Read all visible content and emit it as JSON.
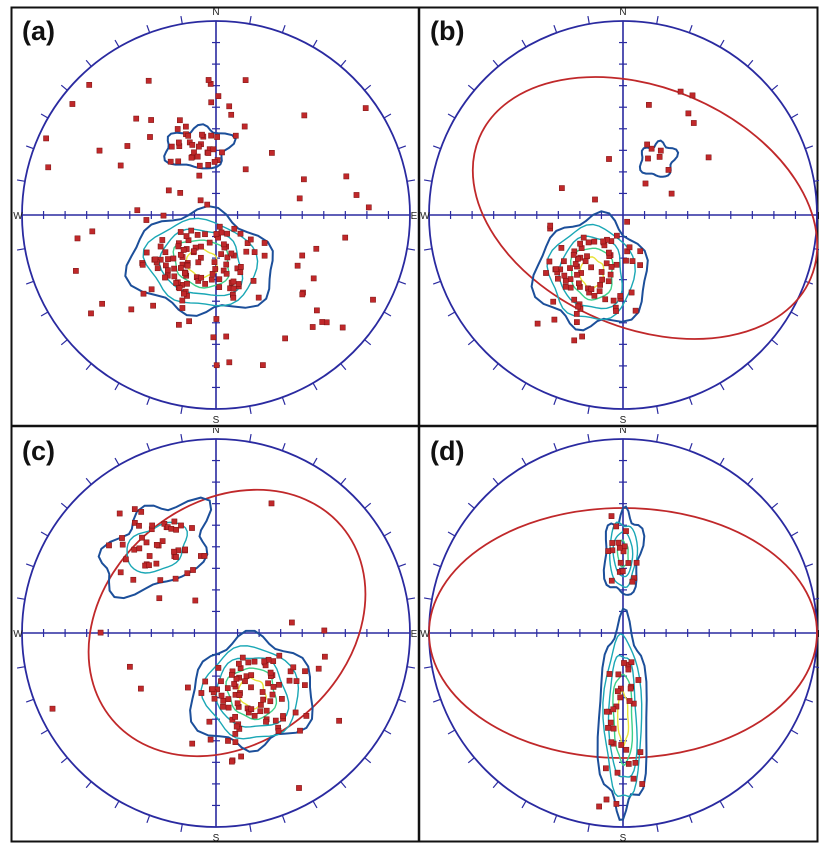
{
  "colors": {
    "primitive": "#2a2aa0",
    "contour_outer": "#1c4f9a",
    "contour_mid": "#1aa7b5",
    "contour_inner": "#3cd08a",
    "contour_core": "#e8e23a",
    "great_circle": "#c0282a",
    "pole": "#c0282a",
    "pole_edge": "#7a1010",
    "frame": "#111111"
  },
  "compass": {
    "north": "N",
    "south": "S",
    "west": "W",
    "east": "E"
  },
  "panels": [
    {
      "label": "(a)"
    },
    {
      "label": "(b)"
    },
    {
      "label": "(c)"
    },
    {
      "label": "(d)"
    }
  ]
}
